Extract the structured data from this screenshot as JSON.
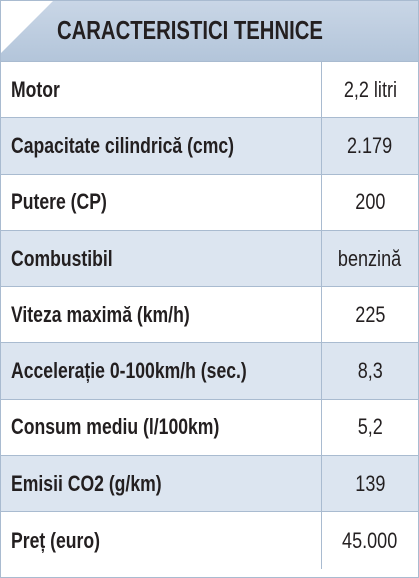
{
  "header": {
    "title": "CARACTERISTICI TEHNICE"
  },
  "table": {
    "rows": [
      [
        "Motor",
        "2,2 litri"
      ],
      [
        "Capacitate cilindrică (cmc)",
        "2.179"
      ],
      [
        "Putere (CP)",
        "200"
      ],
      [
        "Combustibil",
        "benzină"
      ],
      [
        "Viteza maximă (km/h)",
        "225"
      ],
      [
        "Accelerație 0-100km/h (sec.)",
        "8,3"
      ],
      [
        "Consum mediu (l/100km)",
        "5,2"
      ],
      [
        "Emisii CO2 (g/km)",
        "139"
      ],
      [
        "Preț (euro)",
        "45.000"
      ]
    ]
  }
}
